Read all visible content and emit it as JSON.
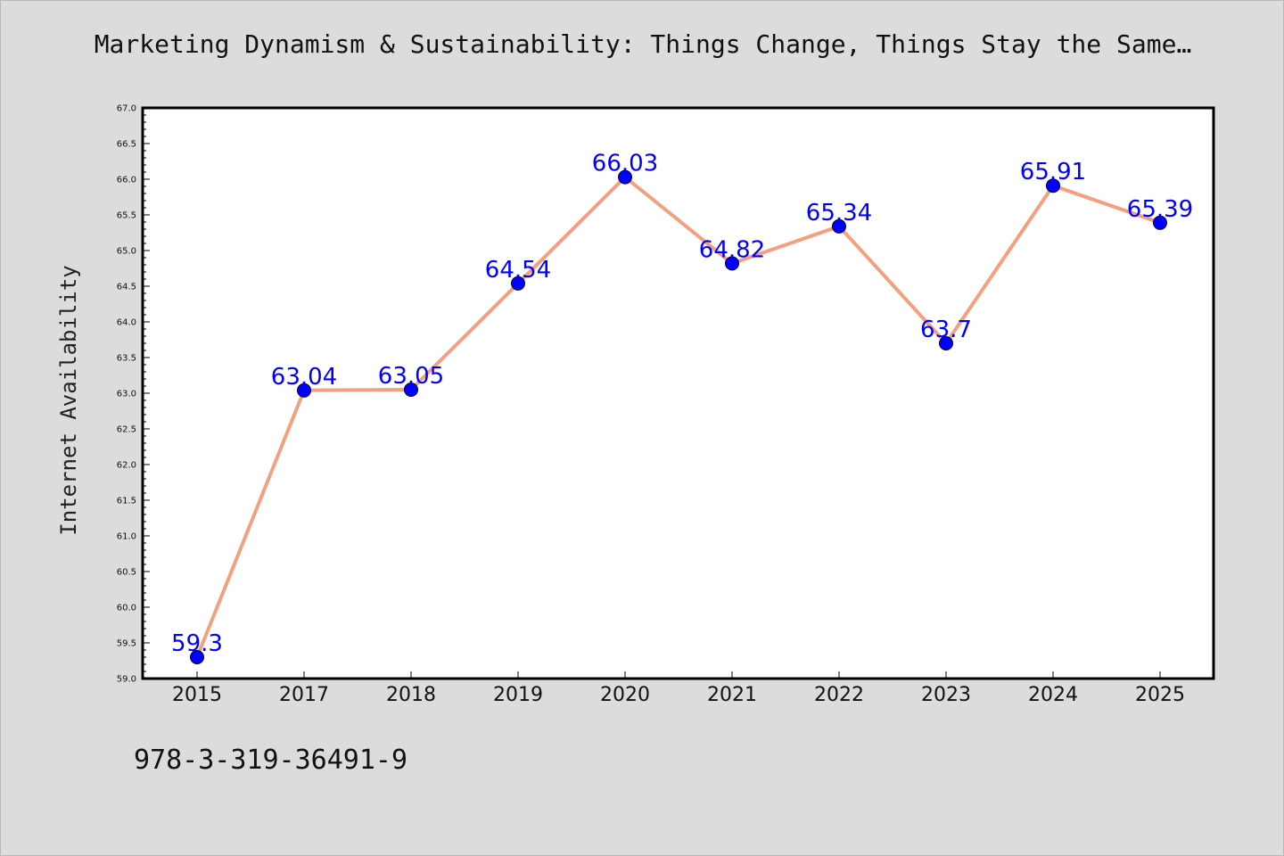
{
  "title": "Marketing Dynamism & Sustainability: Things Change, Things Stay the Same…",
  "footer": "978-3-319-36491-9",
  "colors": {
    "background": "#dcdcdc",
    "plot_background": "#ffffff",
    "line": "#f4a07e",
    "marker": "#0000ff",
    "data_label": "#0000ff"
  },
  "chart_data": {
    "type": "line",
    "title": "Marketing Dynamism & Sustainability: Things Change, Things Stay the Same…",
    "xlabel": "",
    "ylabel": "Internet Availability",
    "categories": [
      "2015",
      "2017",
      "2018",
      "2019",
      "2020",
      "2021",
      "2022",
      "2023",
      "2024",
      "2025"
    ],
    "series": [
      {
        "values": [
          59.3,
          63.04,
          63.05,
          64.54,
          66.03,
          64.82,
          65.34,
          63.7,
          65.91,
          65.39
        ],
        "labels": [
          "59.3",
          "63.04",
          "63.05",
          "64.54",
          "66.03",
          "64.82",
          "65.34",
          "63.7",
          "65.91",
          "65.39"
        ]
      }
    ],
    "ylim": [
      59.0,
      67.0
    ],
    "yticks": [
      "59.0",
      "59.5",
      "60.0",
      "60.5",
      "61.0",
      "61.5",
      "62.0",
      "62.5",
      "63.0",
      "63.5",
      "64.0",
      "64.5",
      "65.0",
      "65.5",
      "66.0",
      "66.5",
      "67.0"
    ],
    "grid": false,
    "legend": "none"
  }
}
